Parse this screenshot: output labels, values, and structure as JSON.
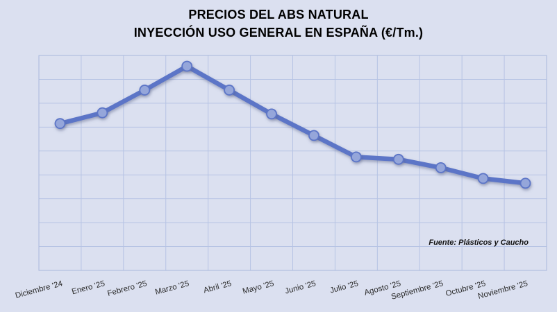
{
  "title": {
    "line1": "PRECIOS DEL ABS NATURAL",
    "line2": "INYECCIÓN USO GENERAL EN ESPAÑA (€/Tm.)"
  },
  "source_note": "Fuente: Plásticos y Caucho",
  "colors": {
    "background": "#dbe0f0",
    "gridline": "#b6c3e4",
    "plot_border": "#a9b8dc",
    "line": "#5b74c7",
    "marker_fill": "#95a6da",
    "marker_stroke": "#5b74c7",
    "title_text": "#000000",
    "axis_label_text": "#2b2b2b"
  },
  "chart_data": {
    "type": "line",
    "title": "PRECIOS DEL ABS NATURAL INYECCIÓN USO GENERAL EN ESPAÑA (€/Tm.)",
    "categories": [
      "Diciembre '24",
      "Enero '25",
      "Febrero '25",
      "Marzo '25",
      "Abril '25",
      "Mayo '25",
      "Junio '25",
      "Julio '25",
      "Agosto '25",
      "Septiembre '25",
      "Octubre '25",
      "Noviembre '25"
    ],
    "values": [
      6.15,
      6.6,
      7.55,
      8.55,
      7.55,
      6.55,
      5.65,
      4.75,
      4.65,
      4.3,
      3.85,
      3.65
    ],
    "values_note": "y-axis has no visible tick labels; values are estimated in gridline units above the bottom axis (1 unit = 1 grid row, bottom axis = 0, top = 9)",
    "xlabel": "",
    "ylabel": "",
    "y_axis": {
      "tick_labels_visible": false,
      "gridline_rows": 9
    },
    "x_axis": {
      "label_rotation_deg": -15
    },
    "grid": true,
    "legend": false,
    "annotation": "Fuente: Plásticos y Caucho"
  }
}
